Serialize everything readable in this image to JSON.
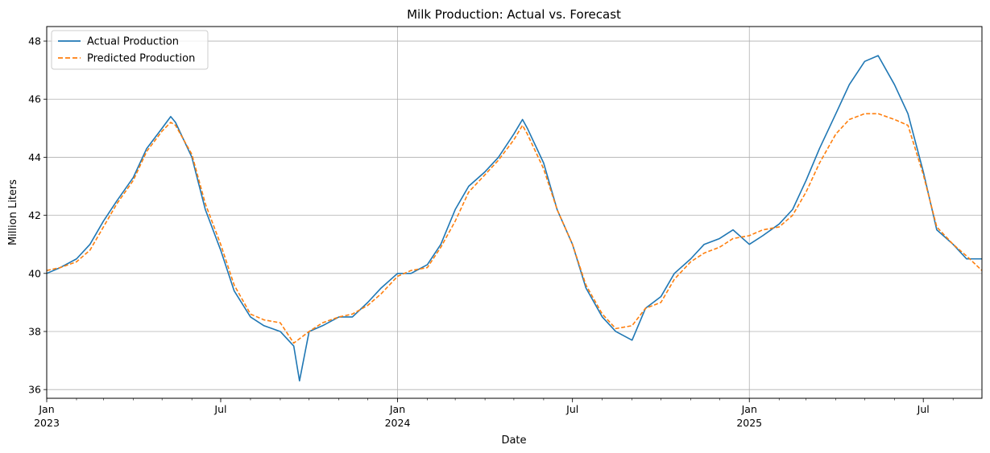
{
  "chart_data": {
    "type": "line",
    "title": "Milk Production: Actual vs. Forecast",
    "xlabel": "Date",
    "ylabel": "Million Liters",
    "xlim": [
      "2023-01-01",
      "2025-08-31"
    ],
    "ylim": [
      35.7,
      48.5
    ],
    "grid": true,
    "legend_position": "top-left",
    "y_ticks": [
      36,
      38,
      40,
      42,
      44,
      46,
      48
    ],
    "x_major_ticks": [
      {
        "date": "2023-01-01",
        "label": "Jan",
        "sublabel": "2023"
      },
      {
        "date": "2023-07-01",
        "label": "Jul",
        "sublabel": ""
      },
      {
        "date": "2024-01-01",
        "label": "Jan",
        "sublabel": "2024"
      },
      {
        "date": "2024-07-01",
        "label": "Jul",
        "sublabel": ""
      },
      {
        "date": "2025-01-01",
        "label": "Jan",
        "sublabel": "2025"
      },
      {
        "date": "2025-07-01",
        "label": "Jul",
        "sublabel": ""
      }
    ],
    "x_gridlines": [
      "2024-01-01",
      "2025-01-01"
    ],
    "series": [
      {
        "name": "Actual Production",
        "color": "#1f77b4",
        "style": "solid",
        "x": [
          "2023-01-01",
          "2023-01-15",
          "2023-02-01",
          "2023-02-15",
          "2023-03-01",
          "2023-03-15",
          "2023-04-01",
          "2023-04-15",
          "2023-05-01",
          "2023-05-10",
          "2023-05-15",
          "2023-06-01",
          "2023-06-15",
          "2023-07-01",
          "2023-07-15",
          "2023-08-01",
          "2023-08-15",
          "2023-09-01",
          "2023-09-15",
          "2023-09-21",
          "2023-10-01",
          "2023-10-15",
          "2023-11-01",
          "2023-11-15",
          "2023-12-01",
          "2023-12-15",
          "2024-01-01",
          "2024-01-15",
          "2024-02-01",
          "2024-02-15",
          "2024-03-01",
          "2024-03-15",
          "2024-04-01",
          "2024-04-15",
          "2024-05-01",
          "2024-05-10",
          "2024-05-15",
          "2024-06-01",
          "2024-06-15",
          "2024-07-01",
          "2024-07-15",
          "2024-08-01",
          "2024-08-15",
          "2024-09-01",
          "2024-09-15",
          "2024-10-01",
          "2024-10-15",
          "2024-11-01",
          "2024-11-15",
          "2024-12-01",
          "2024-12-15",
          "2025-01-01",
          "2025-01-15",
          "2025-02-01",
          "2025-02-15",
          "2025-03-01",
          "2025-03-15",
          "2025-04-01",
          "2025-04-15",
          "2025-05-01",
          "2025-05-15",
          "2025-06-01",
          "2025-06-15",
          "2025-07-01",
          "2025-07-15",
          "2025-08-01",
          "2025-08-15",
          "2025-08-31"
        ],
        "values": [
          40.0,
          40.2,
          40.5,
          41.0,
          41.8,
          42.5,
          43.3,
          44.3,
          45.0,
          45.4,
          45.2,
          44.0,
          42.2,
          40.8,
          39.4,
          38.5,
          38.2,
          38.0,
          37.5,
          36.3,
          38.0,
          38.2,
          38.5,
          38.5,
          39.0,
          39.5,
          40.0,
          40.0,
          40.3,
          41.0,
          42.2,
          43.0,
          43.5,
          44.0,
          44.8,
          45.3,
          45.0,
          43.8,
          42.2,
          41.0,
          39.5,
          38.5,
          38.0,
          37.7,
          38.8,
          39.2,
          40.0,
          40.5,
          41.0,
          41.2,
          41.5,
          41.0,
          41.3,
          41.7,
          42.2,
          43.2,
          44.3,
          45.5,
          46.5,
          47.3,
          47.5,
          46.5,
          45.5,
          43.5,
          41.5,
          41.0,
          40.5,
          40.5
        ]
      },
      {
        "name": "Predicted Production",
        "color": "#ff7f0e",
        "style": "dashed",
        "x": [
          "2023-01-01",
          "2023-01-15",
          "2023-02-01",
          "2023-02-15",
          "2023-03-01",
          "2023-03-15",
          "2023-04-01",
          "2023-04-15",
          "2023-05-01",
          "2023-05-10",
          "2023-05-15",
          "2023-06-01",
          "2023-06-15",
          "2023-07-01",
          "2023-07-15",
          "2023-08-01",
          "2023-08-15",
          "2023-09-01",
          "2023-09-15",
          "2023-10-01",
          "2023-10-15",
          "2023-11-01",
          "2023-11-15",
          "2023-12-01",
          "2023-12-15",
          "2024-01-01",
          "2024-01-15",
          "2024-02-01",
          "2024-02-15",
          "2024-03-01",
          "2024-03-15",
          "2024-04-01",
          "2024-04-15",
          "2024-05-01",
          "2024-05-10",
          "2024-05-15",
          "2024-06-01",
          "2024-06-15",
          "2024-07-01",
          "2024-07-15",
          "2024-08-01",
          "2024-08-15",
          "2024-09-01",
          "2024-09-15",
          "2024-10-01",
          "2024-10-15",
          "2024-11-01",
          "2024-11-15",
          "2024-12-01",
          "2024-12-15",
          "2025-01-01",
          "2025-01-15",
          "2025-02-01",
          "2025-02-15",
          "2025-03-01",
          "2025-03-15",
          "2025-04-01",
          "2025-04-15",
          "2025-05-01",
          "2025-05-15",
          "2025-06-01",
          "2025-06-15",
          "2025-07-01",
          "2025-07-15",
          "2025-08-01",
          "2025-08-15",
          "2025-08-31"
        ],
        "values": [
          40.1,
          40.2,
          40.4,
          40.8,
          41.6,
          42.4,
          43.2,
          44.2,
          44.9,
          45.2,
          45.1,
          44.1,
          42.4,
          41.0,
          39.6,
          38.6,
          38.4,
          38.3,
          37.6,
          38.0,
          38.3,
          38.5,
          38.6,
          38.9,
          39.3,
          39.9,
          40.1,
          40.2,
          40.9,
          41.8,
          42.8,
          43.4,
          43.9,
          44.6,
          45.1,
          44.8,
          43.6,
          42.2,
          41.0,
          39.6,
          38.6,
          38.1,
          38.2,
          38.8,
          39.0,
          39.8,
          40.4,
          40.7,
          40.9,
          41.2,
          41.3,
          41.5,
          41.6,
          42.0,
          42.8,
          43.8,
          44.8,
          45.3,
          45.5,
          45.5,
          45.3,
          45.1,
          43.4,
          41.6,
          41.0,
          40.6,
          40.1
        ]
      }
    ]
  }
}
